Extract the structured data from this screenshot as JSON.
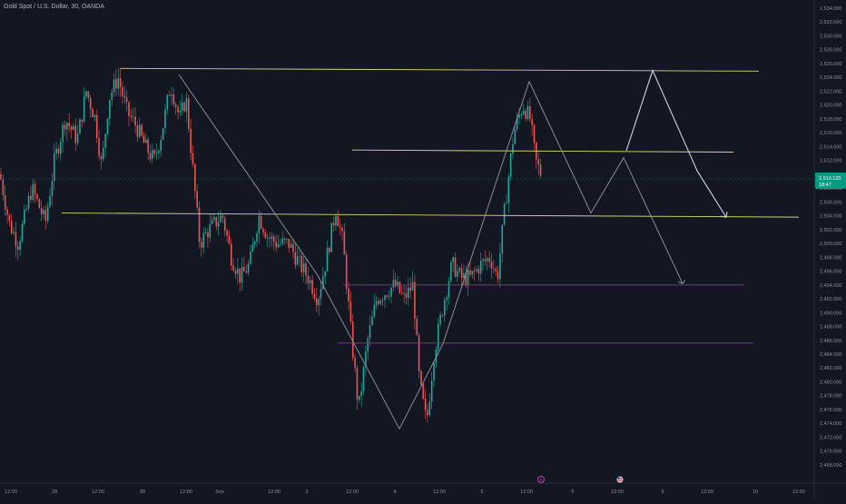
{
  "header": {
    "title": "Gold Spot / U.S. Dollar, 30, OANDA"
  },
  "colors": {
    "background": "#131722",
    "up": "#26a69a",
    "down": "#ef5350",
    "level_yellow": "#d4d47a",
    "level_purple": "#9c27b0",
    "projection": "#d1d4dc",
    "price_badge": "#089981"
  },
  "price_badge": {
    "price": "2,510.120",
    "countdown": "18:47"
  },
  "events": [
    {
      "name": "lightning-icon",
      "label": "⚡",
      "x": "12:00 (Sep 5)"
    },
    {
      "name": "flag-icon",
      "label": "US",
      "x": "12:00 (Sep 6)"
    }
  ],
  "chart_data": {
    "type": "candlestick",
    "symbol": "Gold Spot / U.S. Dollar",
    "interval": "30",
    "source": "OANDA",
    "xlim": [
      "Aug 28",
      "Sep 10 12:00"
    ],
    "ylim": [
      2467,
      2535
    ],
    "x_ticks": [
      "12:00",
      "29",
      "12:00",
      "30",
      "12:00",
      "Sep",
      "12:00",
      "3",
      "12:00",
      "4",
      "12:00",
      "5",
      "12:00",
      "6",
      "12:00",
      "9",
      "12:00",
      "10",
      "12:00"
    ],
    "y_ticks": [
      "2,534.000",
      "2,532.000",
      "2,530.000",
      "2,528.000",
      "2,526.000",
      "2,524.000",
      "2,522.000",
      "2,520.000",
      "2,518.000",
      "2,516.000",
      "2,514.000",
      "2,512.000",
      "2,510.000",
      "2,508.000",
      "2,506.000",
      "2,504.000",
      "2,502.000",
      "2,500.000",
      "2,498.000",
      "2,496.000",
      "2,494.000",
      "2,492.000",
      "2,490.000",
      "2,488.000",
      "2,486.000",
      "2,484.000",
      "2,482.000",
      "2,480.000",
      "2,478.000",
      "2,476.000",
      "2,474.000",
      "2,472.000",
      "2,470.000",
      "2,468.000"
    ],
    "price_path": [
      [
        0,
        2510
      ],
      [
        10,
        2503
      ],
      [
        20,
        2500
      ],
      [
        35,
        2508
      ],
      [
        50,
        2503
      ],
      [
        60,
        2512
      ],
      [
        72,
        2518
      ],
      [
        85,
        2515
      ],
      [
        95,
        2522
      ],
      [
        105,
        2518
      ],
      [
        112,
        2511
      ],
      [
        120,
        2521
      ],
      [
        130,
        2524
      ],
      [
        140,
        2519
      ],
      [
        150,
        2517
      ],
      [
        160,
        2514
      ],
      [
        170,
        2512
      ],
      [
        178,
        2516
      ],
      [
        188,
        2523
      ],
      [
        198,
        2518
      ],
      [
        205,
        2521
      ],
      [
        213,
        2510
      ],
      [
        220,
        2500
      ],
      [
        230,
        2502
      ],
      [
        245,
        2504
      ],
      [
        255,
        2498
      ],
      [
        265,
        2495
      ],
      [
        275,
        2497
      ],
      [
        285,
        2504
      ],
      [
        295,
        2501
      ],
      [
        305,
        2500
      ],
      [
        318,
        2500
      ],
      [
        330,
        2497
      ],
      [
        340,
        2495
      ],
      [
        350,
        2492
      ],
      [
        360,
        2498
      ],
      [
        370,
        2505
      ],
      [
        378,
        2500
      ],
      [
        386,
        2488
      ],
      [
        395,
        2476
      ],
      [
        405,
        2486
      ],
      [
        415,
        2492
      ],
      [
        425,
        2493
      ],
      [
        435,
        2494
      ],
      [
        445,
        2492
      ],
      [
        455,
        2494
      ],
      [
        462,
        2480
      ],
      [
        470,
        2474
      ],
      [
        478,
        2484
      ],
      [
        488,
        2491
      ],
      [
        498,
        2497
      ],
      [
        508,
        2495
      ],
      [
        518,
        2495
      ],
      [
        530,
        2497
      ],
      [
        540,
        2498
      ],
      [
        548,
        2495
      ],
      [
        556,
        2505
      ],
      [
        566,
        2516
      ],
      [
        576,
        2520
      ],
      [
        584,
        2518
      ],
      [
        590,
        2512
      ],
      [
        596,
        2510
      ]
    ],
    "horizontal_levels": [
      {
        "name": "level-2525",
        "color": "yellow",
        "x_start": 133,
        "x_end": 836,
        "y_start": 2525.3,
        "y_end": 2524.9
      },
      {
        "name": "level-2513",
        "color": "yellow",
        "x_start": 388,
        "x_end": 808,
        "y_start": 2513.5,
        "y_end": 2513.2
      },
      {
        "name": "level-2504",
        "color": "yellow",
        "x_start": 68,
        "x_end": 880,
        "y_start": 2504.4,
        "y_end": 2503.8
      },
      {
        "name": "level-2494",
        "color": "purple",
        "x_start": 378,
        "x_end": 820,
        "y_start": 2494.0,
        "y_end": 2494.0
      },
      {
        "name": "level-2486",
        "color": "purple",
        "x_start": 372,
        "x_end": 830,
        "y_start": 2485.6,
        "y_end": 2485.6
      }
    ],
    "zigzag": [
      [
        197,
        2524.4
      ],
      [
        350,
        2495.4
      ],
      [
        440,
        2473.2
      ],
      [
        488,
        2485.5
      ],
      [
        583,
        2523.4
      ],
      [
        651,
        2504.4
      ],
      [
        687,
        2512.4
      ],
      [
        752,
        2494.2
      ]
    ],
    "projection_path": [
      [
        690,
        2513.4
      ],
      [
        719,
        2525.0
      ],
      [
        768,
        2510.5
      ],
      [
        800,
        2503.8
      ]
    ]
  }
}
